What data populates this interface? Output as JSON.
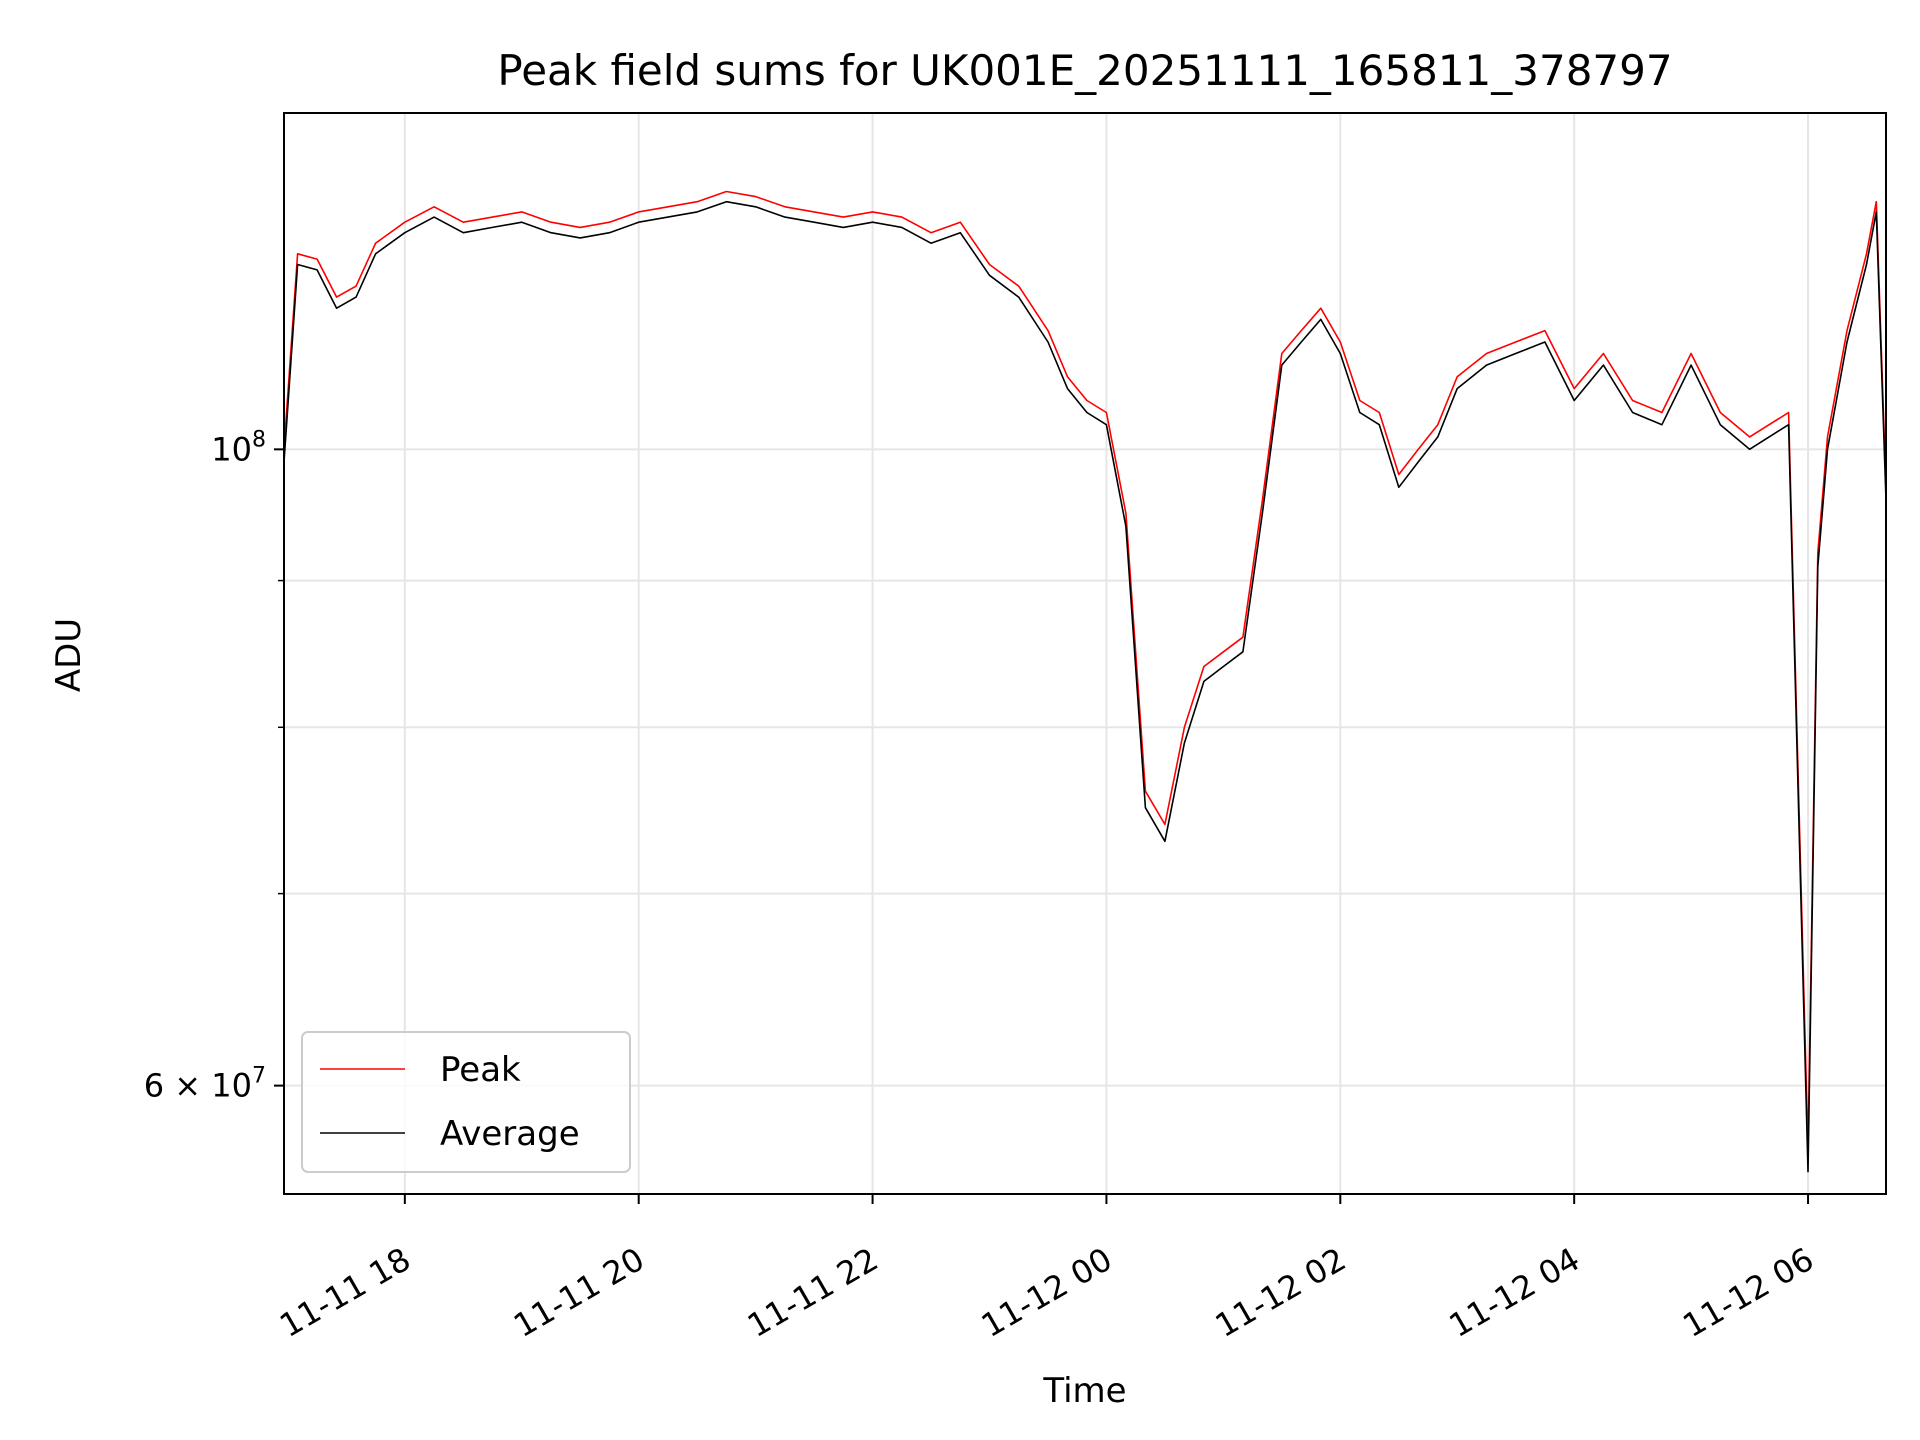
{
  "chart_data": {
    "type": "line",
    "title": "Peak field sums for UK001E_20251111_165811_378797",
    "xlabel": "Time",
    "ylabel": "ADU",
    "y_scale": "log",
    "ylim": [
      55000000,
      131000000
    ],
    "xlim": [
      "2025-11-11 16:58",
      "2025-11-12 06:40"
    ],
    "grid": true,
    "legend_position": "lower-left",
    "x_ticks": [
      {
        "value": "2025-11-11 18:00",
        "label": "11-11 18"
      },
      {
        "value": "2025-11-11 20:00",
        "label": "11-11 20"
      },
      {
        "value": "2025-11-11 22:00",
        "label": "11-11 22"
      },
      {
        "value": "2025-11-12 00:00",
        "label": "11-12 00"
      },
      {
        "value": "2025-11-12 02:00",
        "label": "11-12 02"
      },
      {
        "value": "2025-11-12 04:00",
        "label": "11-12 04"
      },
      {
        "value": "2025-11-12 06:00",
        "label": "11-12 06"
      }
    ],
    "y_ticks_major": [
      {
        "value": 100000000,
        "label_base": "10",
        "label_exp": "8"
      },
      {
        "value": 60000000,
        "label_base": "6 × 10",
        "label_exp": "7"
      }
    ],
    "y_ticks_minor": [
      70000000,
      80000000,
      90000000
    ],
    "x": [
      "2025-11-11 16:58",
      "2025-11-11 17:05",
      "2025-11-11 17:15",
      "2025-11-11 17:25",
      "2025-11-11 17:35",
      "2025-11-11 17:45",
      "2025-11-11 18:00",
      "2025-11-11 18:15",
      "2025-11-11 18:30",
      "2025-11-11 18:45",
      "2025-11-11 19:00",
      "2025-11-11 19:15",
      "2025-11-11 19:30",
      "2025-11-11 19:45",
      "2025-11-11 20:00",
      "2025-11-11 20:15",
      "2025-11-11 20:30",
      "2025-11-11 20:45",
      "2025-11-11 21:00",
      "2025-11-11 21:15",
      "2025-11-11 21:30",
      "2025-11-11 21:45",
      "2025-11-11 22:00",
      "2025-11-11 22:15",
      "2025-11-11 22:30",
      "2025-11-11 22:45",
      "2025-11-11 23:00",
      "2025-11-11 23:15",
      "2025-11-11 23:30",
      "2025-11-11 23:40",
      "2025-11-11 23:50",
      "2025-11-12 00:00",
      "2025-11-12 00:10",
      "2025-11-12 00:20",
      "2025-11-12 00:30",
      "2025-11-12 00:40",
      "2025-11-12 00:50",
      "2025-11-12 01:00",
      "2025-11-12 01:10",
      "2025-11-12 01:20",
      "2025-11-12 01:30",
      "2025-11-12 01:40",
      "2025-11-12 01:50",
      "2025-11-12 02:00",
      "2025-11-12 02:10",
      "2025-11-12 02:20",
      "2025-11-12 02:30",
      "2025-11-12 02:40",
      "2025-11-12 02:50",
      "2025-11-12 03:00",
      "2025-11-12 03:15",
      "2025-11-12 03:30",
      "2025-11-12 03:45",
      "2025-11-12 04:00",
      "2025-11-12 04:15",
      "2025-11-12 04:30",
      "2025-11-12 04:45",
      "2025-11-12 05:00",
      "2025-11-12 05:15",
      "2025-11-12 05:30",
      "2025-11-12 05:40",
      "2025-11-12 05:50",
      "2025-11-12 06:00",
      "2025-11-12 06:05",
      "2025-11-12 06:10",
      "2025-11-12 06:20",
      "2025-11-12 06:30",
      "2025-11-12 06:35",
      "2025-11-12 06:40"
    ],
    "series": [
      {
        "name": "Peak",
        "color": "#ff0000",
        "values": [
          100000000,
          117000000,
          116500000,
          113000000,
          114000000,
          118000000,
          120000000,
          121500000,
          120000000,
          120500000,
          121000000,
          120000000,
          119500000,
          120000000,
          121000000,
          121500000,
          122000000,
          123000000,
          122500000,
          121500000,
          121000000,
          120500000,
          121000000,
          120500000,
          119000000,
          120000000,
          116000000,
          114000000,
          110000000,
          106000000,
          104000000,
          103000000,
          95000000,
          76000000,
          74000000,
          80000000,
          84000000,
          85000000,
          86000000,
          96000000,
          108000000,
          110000000,
          112000000,
          109000000,
          104000000,
          103000000,
          98000000,
          100000000,
          102000000,
          106000000,
          108000000,
          109000000,
          110000000,
          105000000,
          108000000,
          104000000,
          103000000,
          108000000,
          103000000,
          101000000,
          102000000,
          103000000,
          57000000,
          92000000,
          101000000,
          110000000,
          117000000,
          122000000,
          97000000
        ]
      },
      {
        "name": "Average",
        "color": "#000000",
        "values": [
          99000000,
          116000000,
          115500000,
          112000000,
          113000000,
          117000000,
          119000000,
          120500000,
          119000000,
          119500000,
          120000000,
          119000000,
          118500000,
          119000000,
          120000000,
          120500000,
          121000000,
          122000000,
          121500000,
          120500000,
          120000000,
          119500000,
          120000000,
          119500000,
          118000000,
          119000000,
          115000000,
          113000000,
          109000000,
          105000000,
          103000000,
          102000000,
          94000000,
          75000000,
          73000000,
          79000000,
          83000000,
          84000000,
          85000000,
          95000000,
          107000000,
          109000000,
          111000000,
          108000000,
          103000000,
          102000000,
          97000000,
          99000000,
          101000000,
          105000000,
          107000000,
          108000000,
          109000000,
          104000000,
          107000000,
          103000000,
          102000000,
          107000000,
          102000000,
          100000000,
          101000000,
          102000000,
          56000000,
          91000000,
          100000000,
          109000000,
          116000000,
          121000000,
          96000000
        ]
      }
    ]
  }
}
